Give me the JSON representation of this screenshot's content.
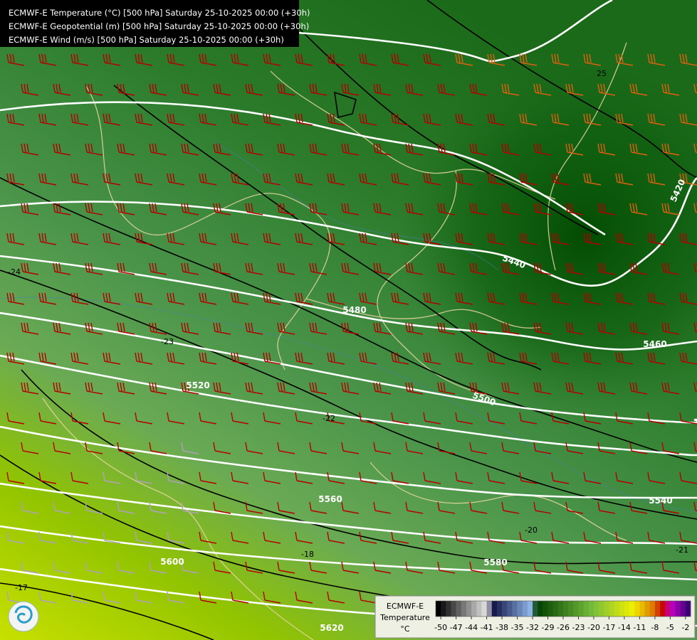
{
  "header": {
    "lines": [
      "ECMWF-E Temperature (°C) [500 hPa] Saturday 25-10-2025 00:00 (+30h)",
      "ECMWF-E Geopotential (m) [500 hPa] Saturday 25-10-2025 00:00 (+30h)",
      "ECMWF-E Wind (m/s) [500 hPa] Saturday 25-10-2025 00:00 (+30h)"
    ]
  },
  "geopotential_labels": [
    5420,
    5440,
    5460,
    5480,
    5500,
    5520,
    5540,
    5560,
    5580,
    5600,
    5620
  ],
  "temperature_labels": [
    25,
    -24,
    -23,
    -22,
    -21,
    -20,
    -18,
    -17
  ],
  "legend": {
    "title_lines": [
      "ECMWF-E",
      "Temperature",
      "°C"
    ],
    "clim": [
      -51,
      -1
    ],
    "ticks": [
      -50,
      -47,
      -44,
      -41,
      -38,
      -35,
      -32,
      -29,
      -26,
      -23,
      -20,
      -17,
      -14,
      -11,
      -8,
      -5,
      -2
    ]
  }
}
